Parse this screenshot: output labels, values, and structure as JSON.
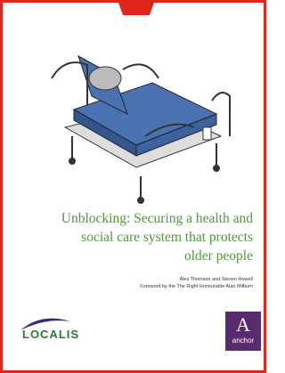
{
  "cover": {
    "title_lines": [
      "Unblocking: Securing a health and",
      "social care system that protects",
      "older people"
    ],
    "authors": "Alex Thomson and Steven Howell",
    "foreword": "Foreword by the The Right Honourable Alan Milburn",
    "logos": {
      "localis": "LOCALIS",
      "anchor_mark": "A",
      "anchor": "anchor"
    }
  }
}
